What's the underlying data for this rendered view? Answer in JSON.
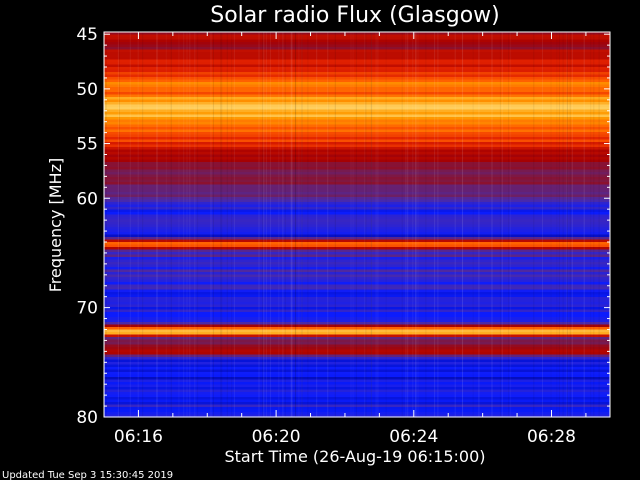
{
  "chart_data": {
    "type": "heatmap",
    "title": "Solar radio Flux (Glasgow)",
    "ylabel": "Frequency [MHz]",
    "xlabel": "Start Time (26-Aug-19 06:15:00)",
    "x_ticks": [
      "06:16",
      "06:20",
      "06:24",
      "06:28"
    ],
    "x_tick_minutes": [
      1,
      5,
      9,
      13
    ],
    "x_range_minutes": [
      0,
      14.7
    ],
    "y_ticks": [
      45,
      50,
      55,
      60,
      70,
      80
    ],
    "ylim": [
      44.8,
      80
    ],
    "colormap": [
      "#00007a",
      "#0a1cff",
      "#4b2aa8",
      "#7a1a4a",
      "#a80000",
      "#e02000",
      "#ff5a00",
      "#ff9a00",
      "#ffd060",
      "#ffffc0"
    ],
    "frequency_profile": [
      {
        "f": 44.8,
        "v": 0.35
      },
      {
        "f": 45.3,
        "v": 0.55
      },
      {
        "f": 46.0,
        "v": 0.4
      },
      {
        "f": 47.0,
        "v": 0.5
      },
      {
        "f": 48.0,
        "v": 0.55
      },
      {
        "f": 49.2,
        "v": 0.65
      },
      {
        "f": 49.6,
        "v": 0.85
      },
      {
        "f": 50.0,
        "v": 0.6
      },
      {
        "f": 50.8,
        "v": 0.75
      },
      {
        "f": 51.6,
        "v": 0.88
      },
      {
        "f": 52.5,
        "v": 0.8
      },
      {
        "f": 53.5,
        "v": 0.7
      },
      {
        "f": 54.5,
        "v": 0.62
      },
      {
        "f": 56.0,
        "v": 0.45
      },
      {
        "f": 57.0,
        "v": 0.4
      },
      {
        "f": 58.0,
        "v": 0.35
      },
      {
        "f": 59.0,
        "v": 0.3
      },
      {
        "f": 60.0,
        "v": 0.25
      },
      {
        "f": 61.0,
        "v": 0.14
      },
      {
        "f": 63.5,
        "v": 0.12
      },
      {
        "f": 64.2,
        "v": 0.8
      },
      {
        "f": 64.8,
        "v": 0.22
      },
      {
        "f": 66.0,
        "v": 0.18
      },
      {
        "f": 68.0,
        "v": 0.16
      },
      {
        "f": 70.0,
        "v": 0.12
      },
      {
        "f": 71.5,
        "v": 0.22
      },
      {
        "f": 72.2,
        "v": 0.98
      },
      {
        "f": 72.8,
        "v": 0.3
      },
      {
        "f": 74.0,
        "v": 0.5
      },
      {
        "f": 74.8,
        "v": 0.14
      },
      {
        "f": 76.0,
        "v": 0.12
      },
      {
        "f": 78.0,
        "v": 0.1
      },
      {
        "f": 80.0,
        "v": 0.18
      }
    ]
  },
  "footer": {
    "updated": "Updated Tue Sep  3 15:30:45 2019"
  }
}
